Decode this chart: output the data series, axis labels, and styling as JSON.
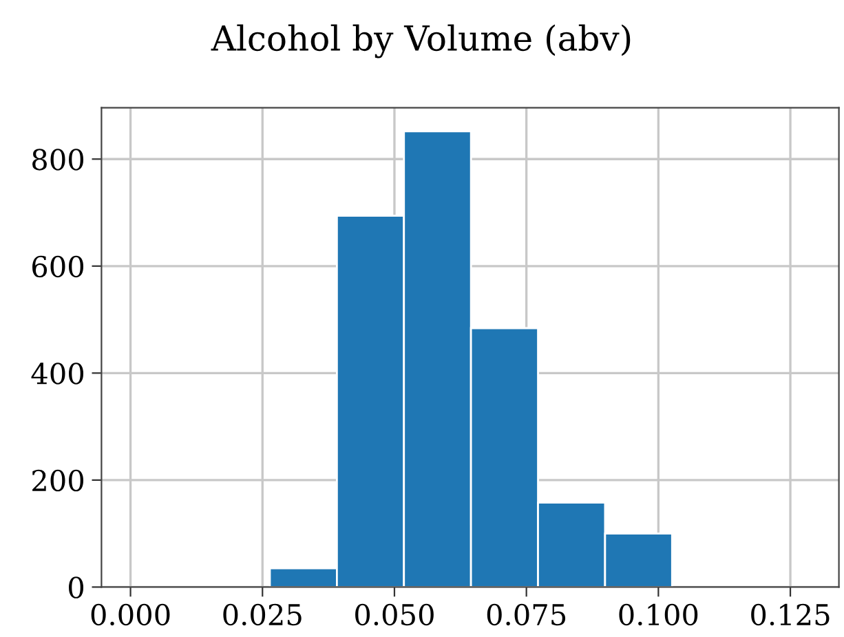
{
  "chart_data": {
    "type": "histogram",
    "title": "Alcohol by Volume (abv)",
    "bins": [
      0.001,
      0.0137,
      0.0264,
      0.0391,
      0.0518,
      0.0645,
      0.0772,
      0.0899,
      0.1026,
      0.1153,
      0.128
    ],
    "values": [
      0,
      0,
      35,
      694,
      852,
      484,
      158,
      100,
      0,
      0
    ],
    "color": "#1f77b4",
    "xlim": [
      -0.0055,
      0.1342
    ],
    "xticks": [
      {
        "value": 0,
        "label": "0.000"
      },
      {
        "value": 0.025,
        "label": "0.025"
      },
      {
        "value": 0.05,
        "label": "0.050"
      },
      {
        "value": 0.075,
        "label": "0.075"
      },
      {
        "value": 0.1,
        "label": "0.100"
      },
      {
        "value": 0.125,
        "label": "0.125"
      }
    ],
    "ylim": [
      0,
      896
    ],
    "yticks": [
      0,
      200,
      400,
      600,
      800
    ],
    "grid": true,
    "legend": false
  }
}
